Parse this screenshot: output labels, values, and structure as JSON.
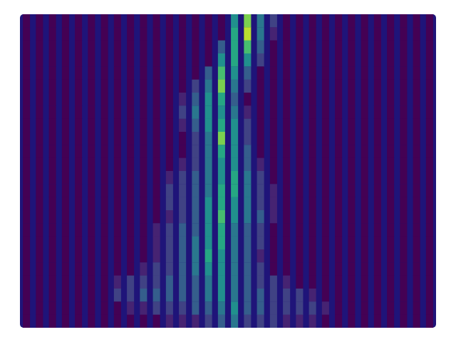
{
  "chart_data": {
    "type": "heatmap",
    "tick_labels": false,
    "color_range": [
      0,
      10
    ],
    "cells": [
      [
        0,
        0,
        0,
        0,
        0,
        0,
        0,
        0,
        0,
        0,
        0,
        0,
        0,
        0,
        0,
        0,
        5,
        8,
        4,
        2,
        0,
        0,
        0,
        0,
        0,
        0,
        0,
        0,
        0,
        0,
        0,
        0
      ],
      [
        0,
        0,
        0,
        0,
        0,
        0,
        0,
        0,
        0,
        0,
        0,
        0,
        0,
        0,
        0,
        0,
        6,
        9,
        4,
        1,
        0,
        0,
        0,
        0,
        0,
        0,
        0,
        0,
        0,
        0,
        0,
        0
      ],
      [
        0,
        0,
        0,
        0,
        0,
        0,
        0,
        0,
        0,
        0,
        0,
        0,
        0,
        0,
        0,
        3,
        6,
        7,
        3,
        0,
        0,
        0,
        0,
        0,
        0,
        0,
        0,
        0,
        0,
        0,
        0,
        0
      ],
      [
        0,
        0,
        0,
        0,
        0,
        0,
        0,
        0,
        0,
        0,
        0,
        0,
        0,
        0,
        0,
        5,
        6,
        5,
        2,
        0,
        0,
        0,
        0,
        0,
        0,
        0,
        0,
        0,
        0,
        0,
        0,
        0
      ],
      [
        0,
        0,
        0,
        0,
        0,
        0,
        0,
        0,
        0,
        0,
        0,
        0,
        0,
        0,
        3,
        7,
        5,
        3,
        0,
        0,
        0,
        0,
        0,
        0,
        0,
        0,
        0,
        0,
        0,
        0,
        0,
        0
      ],
      [
        0,
        0,
        0,
        0,
        0,
        0,
        0,
        0,
        0,
        0,
        0,
        0,
        0,
        2,
        4,
        8,
        4,
        2,
        0,
        0,
        0,
        0,
        0,
        0,
        0,
        0,
        0,
        0,
        0,
        0,
        0,
        0
      ],
      [
        0,
        0,
        0,
        0,
        0,
        0,
        0,
        0,
        0,
        0,
        0,
        0,
        1,
        3,
        5,
        6,
        3,
        0,
        0,
        0,
        0,
        0,
        0,
        0,
        0,
        0,
        0,
        0,
        0,
        0,
        0,
        0
      ],
      [
        0,
        0,
        0,
        0,
        0,
        0,
        0,
        0,
        0,
        0,
        0,
        0,
        2,
        4,
        5,
        5,
        4,
        1,
        0,
        0,
        0,
        0,
        0,
        0,
        0,
        0,
        0,
        0,
        0,
        0,
        0,
        0
      ],
      [
        0,
        0,
        0,
        0,
        0,
        0,
        0,
        0,
        0,
        0,
        0,
        0,
        1,
        3,
        5,
        6,
        5,
        2,
        0,
        0,
        0,
        0,
        0,
        0,
        0,
        0,
        0,
        0,
        0,
        0,
        0,
        0
      ],
      [
        0,
        0,
        0,
        0,
        0,
        0,
        0,
        0,
        0,
        0,
        0,
        0,
        0,
        2,
        4,
        8,
        5,
        2,
        0,
        0,
        0,
        0,
        0,
        0,
        0,
        0,
        0,
        0,
        0,
        0,
        0,
        0
      ],
      [
        0,
        0,
        0,
        0,
        0,
        0,
        0,
        0,
        0,
        0,
        0,
        0,
        0,
        2,
        4,
        6,
        5,
        3,
        0,
        0,
        0,
        0,
        0,
        0,
        0,
        0,
        0,
        0,
        0,
        0,
        0,
        0
      ],
      [
        0,
        0,
        0,
        0,
        0,
        0,
        0,
        0,
        0,
        0,
        0,
        0,
        1,
        2,
        4,
        5,
        5,
        3,
        1,
        0,
        0,
        0,
        0,
        0,
        0,
        0,
        0,
        0,
        0,
        0,
        0,
        0
      ],
      [
        0,
        0,
        0,
        0,
        0,
        0,
        0,
        0,
        0,
        0,
        0,
        1,
        2,
        3,
        4,
        5,
        6,
        4,
        2,
        0,
        0,
        0,
        0,
        0,
        0,
        0,
        0,
        0,
        0,
        0,
        0,
        0
      ],
      [
        0,
        0,
        0,
        0,
        0,
        0,
        0,
        0,
        0,
        0,
        0,
        2,
        2,
        3,
        4,
        6,
        6,
        4,
        2,
        1,
        0,
        0,
        0,
        0,
        0,
        0,
        0,
        0,
        0,
        0,
        0,
        0
      ],
      [
        0,
        0,
        0,
        0,
        0,
        0,
        0,
        0,
        0,
        0,
        0,
        2,
        2,
        3,
        5,
        6,
        5,
        4,
        2,
        1,
        0,
        0,
        0,
        0,
        0,
        0,
        0,
        0,
        0,
        0,
        0,
        0
      ],
      [
        0,
        0,
        0,
        0,
        0,
        0,
        0,
        0,
        0,
        0,
        0,
        1,
        2,
        3,
        5,
        7,
        5,
        4,
        3,
        1,
        0,
        0,
        0,
        0,
        0,
        0,
        0,
        0,
        0,
        0,
        0,
        0
      ],
      [
        0,
        0,
        0,
        0,
        0,
        0,
        0,
        0,
        0,
        0,
        1,
        2,
        3,
        3,
        5,
        6,
        4,
        3,
        2,
        0,
        0,
        0,
        0,
        0,
        0,
        0,
        0,
        0,
        0,
        0,
        0,
        0
      ],
      [
        0,
        0,
        0,
        0,
        0,
        0,
        0,
        0,
        0,
        0,
        1,
        2,
        3,
        4,
        5,
        6,
        4,
        3,
        2,
        0,
        0,
        0,
        0,
        0,
        0,
        0,
        0,
        0,
        0,
        0,
        0,
        0
      ],
      [
        0,
        0,
        0,
        0,
        0,
        0,
        0,
        0,
        0,
        0,
        1,
        2,
        3,
        4,
        6,
        5,
        4,
        3,
        1,
        0,
        0,
        0,
        0,
        0,
        0,
        0,
        0,
        0,
        0,
        0,
        0,
        0
      ],
      [
        0,
        0,
        0,
        0,
        0,
        0,
        0,
        0,
        0,
        1,
        2,
        2,
        3,
        4,
        5,
        5,
        4,
        3,
        2,
        0,
        0,
        0,
        0,
        0,
        0,
        0,
        0,
        0,
        0,
        0,
        0,
        0
      ],
      [
        0,
        0,
        0,
        0,
        0,
        0,
        0,
        1,
        2,
        2,
        2,
        3,
        3,
        3,
        4,
        5,
        4,
        3,
        2,
        2,
        1,
        0,
        0,
        0,
        0,
        0,
        0,
        0,
        0,
        0,
        0,
        0
      ],
      [
        0,
        0,
        0,
        0,
        0,
        0,
        0,
        2,
        2,
        3,
        3,
        3,
        3,
        3,
        4,
        5,
        4,
        3,
        3,
        2,
        2,
        2,
        1,
        0,
        0,
        0,
        0,
        0,
        0,
        0,
        0,
        0
      ],
      [
        0,
        0,
        0,
        0,
        0,
        0,
        0,
        0,
        1,
        1,
        2,
        2,
        2,
        3,
        3,
        4,
        5,
        3,
        3,
        2,
        2,
        2,
        2,
        1,
        0,
        0,
        0,
        0,
        0,
        0,
        0,
        0
      ],
      [
        0,
        0,
        0,
        0,
        0,
        0,
        0,
        0,
        0,
        0,
        0,
        1,
        1,
        1,
        2,
        3,
        4,
        2,
        2,
        2,
        1,
        1,
        1,
        0,
        0,
        0,
        0,
        0,
        0,
        0,
        0,
        0
      ]
    ]
  }
}
